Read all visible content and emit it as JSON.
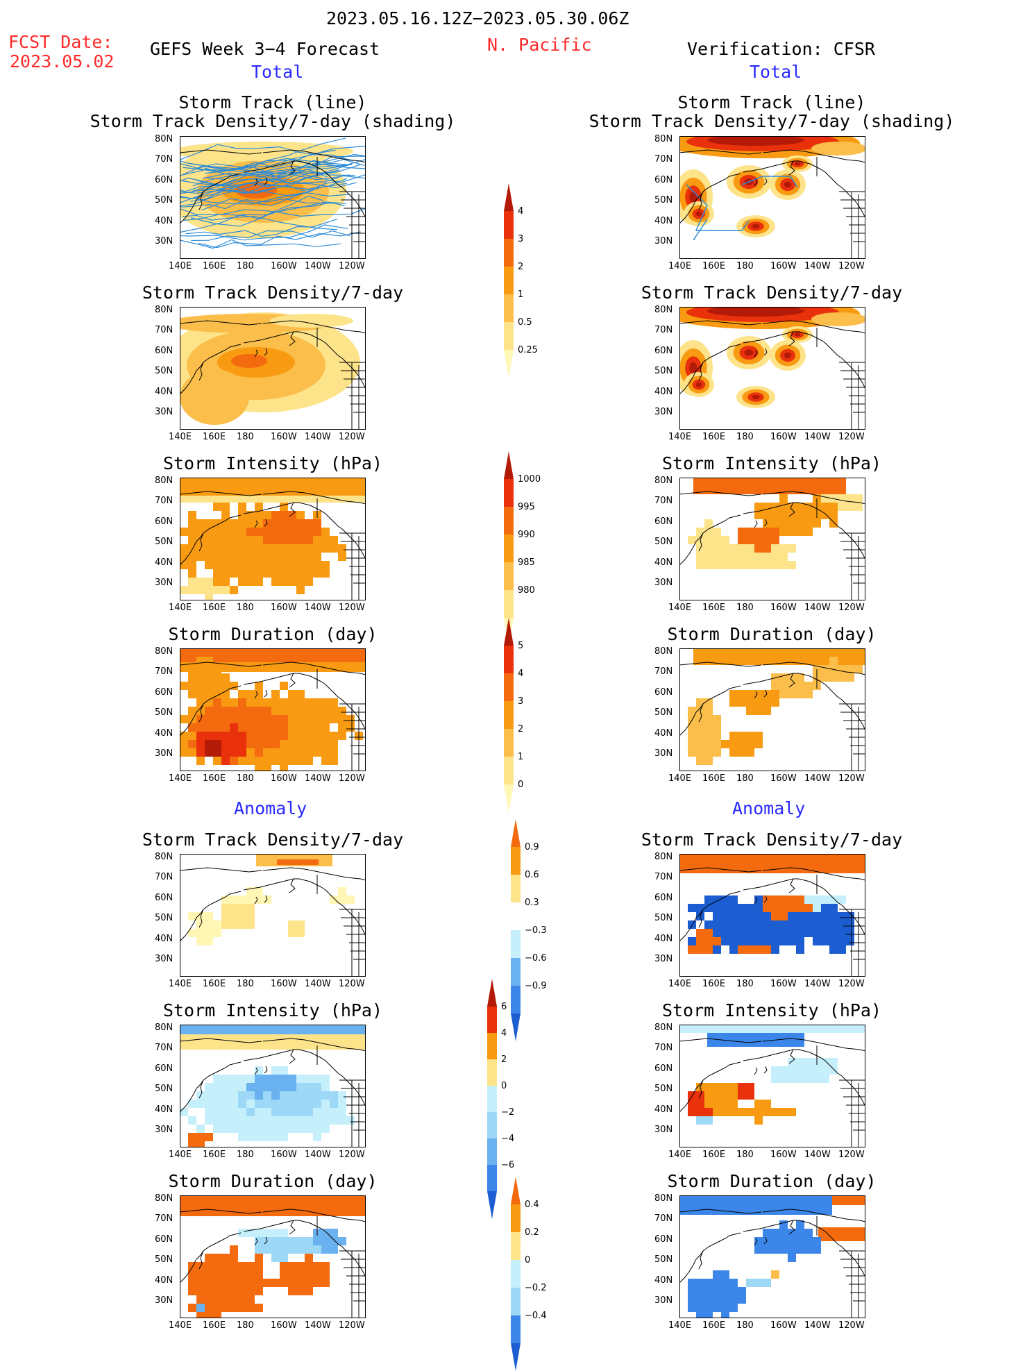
{
  "header": {
    "date_range": "2023.05.16.12Z−2023.05.30.06Z",
    "fcst_label": "FCST Date:",
    "fcst_date": "2023.05.02",
    "left_title": "GEFS Week 3−4 Forecast",
    "region": "N. Pacific",
    "right_title": "Verification: CFSR",
    "total_label": "Total",
    "anomaly_label": "Anomaly"
  },
  "axes": {
    "x_ticks": [
      "140E",
      "160E",
      "180",
      "160W",
      "140W",
      "120W"
    ],
    "y_ticks": [
      "80N",
      "70N",
      "60N",
      "50N",
      "40N",
      "30N"
    ]
  },
  "colors": {
    "pos": [
      "#fff7b3",
      "#fde38a",
      "#fbbe4a",
      "#f89b12",
      "#f36b0e",
      "#e9320b",
      "#b31a07"
    ],
    "neg": [
      "#c5f0fb",
      "#9dd8f7",
      "#6ab1f0",
      "#3b86e8",
      "#1c5ed2"
    ],
    "track_line": "#2b8ad8",
    "land_line": "#000000"
  },
  "panels": [
    {
      "id": "fc-track",
      "col": "left",
      "titles": [
        "Storm Track (line)",
        "Storm Track Density/7-day (shading)"
      ]
    },
    {
      "id": "vf-track",
      "col": "right",
      "titles": [
        "Storm Track (line)",
        "Storm Track Density/7-day (shading)"
      ]
    },
    {
      "id": "fc-density",
      "col": "left",
      "titles": [
        "Storm Track Density/7-day"
      ]
    },
    {
      "id": "vf-density",
      "col": "right",
      "titles": [
        "Storm Track Density/7-day"
      ]
    },
    {
      "id": "fc-intensity",
      "col": "left",
      "titles": [
        "Storm Intensity (hPa)"
      ]
    },
    {
      "id": "vf-intensity",
      "col": "right",
      "titles": [
        "Storm Intensity (hPa)"
      ]
    },
    {
      "id": "fc-duration",
      "col": "left",
      "titles": [
        "Storm Duration (day)"
      ]
    },
    {
      "id": "vf-duration",
      "col": "right",
      "titles": [
        "Storm Duration (day)"
      ]
    },
    {
      "id": "fc-density-anom",
      "col": "left",
      "titles": [
        "Storm Track Density/7-day"
      ]
    },
    {
      "id": "vf-density-anom",
      "col": "right",
      "titles": [
        "Storm Track Density/7-day"
      ]
    },
    {
      "id": "fc-intensity-anom",
      "col": "left",
      "titles": [
        "Storm Intensity (hPa)"
      ]
    },
    {
      "id": "vf-intensity-anom",
      "col": "right",
      "titles": [
        "Storm Intensity (hPa)"
      ]
    },
    {
      "id": "fc-duration-anom",
      "col": "left",
      "titles": [
        "Storm Duration (day)"
      ]
    },
    {
      "id": "vf-duration-anom",
      "col": "right",
      "titles": [
        "Storm Duration (day)"
      ]
    }
  ],
  "colorbars": [
    {
      "id": "cb-density",
      "labels": [
        "0.25",
        "0.5",
        "1",
        "2",
        "3",
        "4"
      ]
    },
    {
      "id": "cb-intensity",
      "labels": [
        "1000",
        "995",
        "990",
        "985",
        "980"
      ]
    },
    {
      "id": "cb-duration",
      "labels": [
        "0",
        "1",
        "2",
        "3",
        "4",
        "5"
      ]
    },
    {
      "id": "cb-density-anom",
      "labels": [
        "0.9",
        "0.6",
        "0.3",
        "−0.3",
        "−0.6",
        "−0.9"
      ]
    },
    {
      "id": "cb-intensity-anom",
      "labels": [
        "6",
        "4",
        "2",
        "0",
        "−2",
        "−4",
        "−6"
      ]
    },
    {
      "id": "cb-duration-anom",
      "labels": [
        "0.4",
        "0.2",
        "0",
        "−0.2",
        "−0.4"
      ]
    }
  ],
  "chart_data": {
    "type": "heatmap",
    "x_range": [
      "140E",
      "120W"
    ],
    "y_range": [
      "25N",
      "85N"
    ],
    "grid": false
  }
}
